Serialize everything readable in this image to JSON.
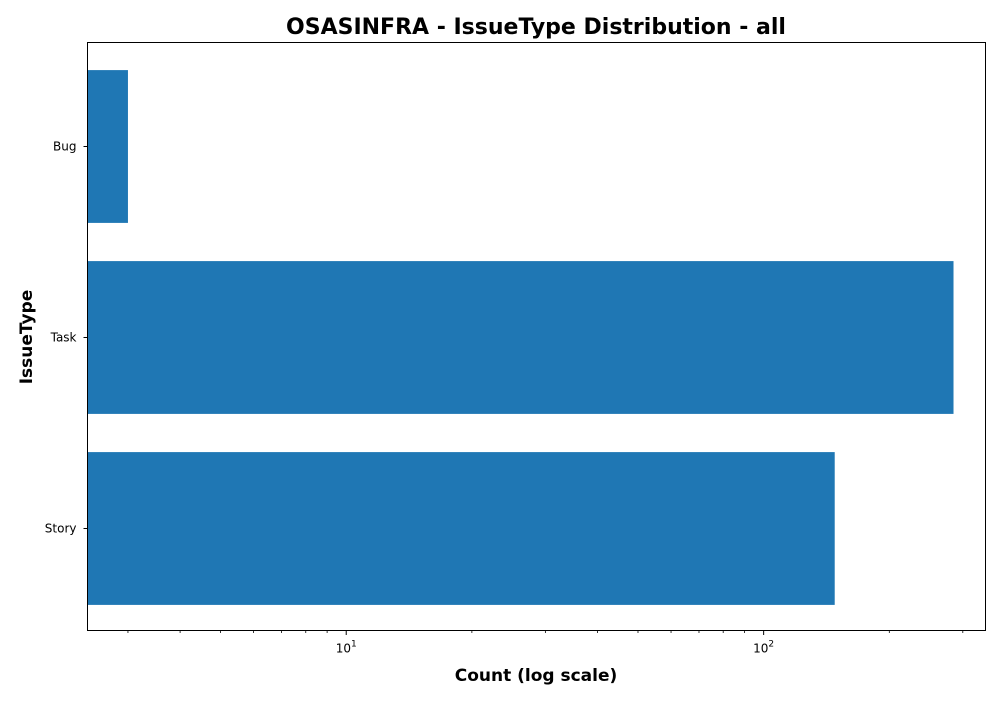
{
  "chart_data": {
    "type": "bar",
    "orientation": "horizontal",
    "title": "OSASINFRA - IssueType Distribution - all",
    "xlabel": "Count (log scale)",
    "ylabel": "IssueType",
    "xscale": "log",
    "xlim": [
      2.4,
      340
    ],
    "categories": [
      "Bug",
      "Task",
      "Story"
    ],
    "values": [
      3,
      285,
      148
    ],
    "xticks": [
      {
        "base": "10",
        "exp": "1",
        "value": 10
      },
      {
        "base": "10",
        "exp": "2",
        "value": 100
      }
    ],
    "grid": false,
    "bar_color": "#1f77b4"
  }
}
